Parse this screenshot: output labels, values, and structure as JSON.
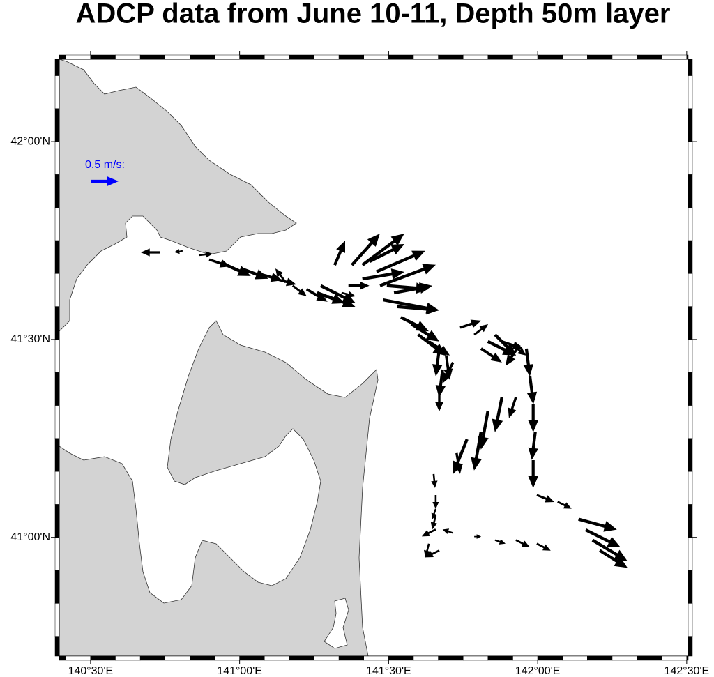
{
  "map": {
    "title": "ADCP data from June 10-11, Depth 50m layer",
    "xlim": [
      140.395,
      142.505
    ],
    "ylim": [
      40.7,
      42.208
    ],
    "xticks": [
      {
        "value": 140.5,
        "label": "140°30'E"
      },
      {
        "value": 141,
        "label": "141°00'E"
      },
      {
        "value": 141.5,
        "label": "141°30'E"
      },
      {
        "value": 142,
        "label": "142°00'E"
      },
      {
        "value": 142.5,
        "label": "142°30'E"
      }
    ],
    "yticks": [
      {
        "value": 41,
        "label": "41°00'N"
      },
      {
        "value": 41.5,
        "label": "41°30'N"
      },
      {
        "value": 42,
        "label": "42°00'N"
      }
    ],
    "land_color": "#d3d3d3",
    "vector_color": "#000000",
    "reference": {
      "value": 0.5,
      "label": "0.5 m/s:",
      "color": "#0000ff"
    },
    "vectors": {
      "lon": [
        140.734,
        140.809,
        140.863,
        140.898,
        140.944,
        141.003,
        141.061,
        141.12,
        141.155,
        141.178,
        141.225,
        141.26,
        141.295,
        141.272,
        141.342,
        141.365,
        141.319,
        141.377,
        141.412,
        141.436,
        141.459,
        141.412,
        141.471,
        141.494,
        141.482,
        141.529,
        141.518,
        141.541,
        141.576,
        141.599,
        141.635,
        141.67,
        141.693,
        141.716,
        141.681,
        141.67,
        141.74,
        141.787,
        141.81,
        141.833,
        141.857,
        141.88,
        141.915,
        141.939,
        141.962,
        141.974,
        141.985,
        141.992,
        141.985,
        141.88,
        141.833,
        141.81,
        141.763,
        141.728,
        141.927,
        141.997,
        142.067,
        142.137,
        142.161,
        142.184,
        142.208,
        141.997,
        141.927,
        141.857,
        141.787,
        141.716,
        141.658,
        141.635,
        141.67,
        141.658,
        141.658,
        141.651,
        141.658
      ],
      "lat": [
        41.72,
        41.724,
        41.713,
        41.702,
        41.692,
        41.68,
        41.667,
        41.653,
        41.644,
        41.636,
        41.627,
        41.618,
        41.609,
        41.636,
        41.618,
        41.636,
        41.688,
        41.688,
        41.688,
        41.697,
        41.671,
        41.653,
        41.636,
        41.636,
        41.6,
        41.583,
        41.618,
        41.556,
        41.539,
        41.512,
        41.495,
        41.477,
        41.46,
        41.442,
        41.424,
        41.371,
        41.53,
        41.512,
        41.477,
        41.495,
        41.512,
        41.495,
        41.486,
        41.486,
        41.477,
        41.407,
        41.336,
        41.266,
        41.195,
        41.354,
        41.319,
        41.266,
        41.248,
        41.213,
        41.354,
        41.107,
        41.09,
        41.046,
        41.019,
        40.993,
        40.967,
        40.984,
        40.993,
        40.993,
        41.002,
        41.011,
        41.02,
        40.984,
        40.967,
        41.055,
        41.107,
        41.16,
        41.072
      ],
      "u": [
        -0.35,
        -0.15,
        0.25,
        0.375,
        0.5,
        0.5,
        0.438,
        0.375,
        -0.188,
        0.25,
        0.375,
        0.5,
        0.5,
        0.625,
        0.25,
        0.375,
        0.188,
        0.5,
        0.75,
        0.625,
        0.875,
        0.75,
        1.0,
        0.75,
        1.0,
        0.75,
        0.688,
        0.5,
        0.5,
        0.5,
        0.375,
        -0.063,
        0.063,
        -0.188,
        -0.063,
        0.0,
        0.375,
        0.25,
        0.375,
        0.5,
        0.375,
        0.375,
        0.25,
        -0.25,
        0.063,
        0.063,
        0.0,
        -0.063,
        0.0,
        -0.125,
        -0.125,
        -0.125,
        -0.25,
        0.063,
        -0.125,
        0.313,
        0.25,
        0.688,
        0.625,
        0.625,
        0.5,
        0.25,
        0.25,
        0.188,
        0.125,
        -0.188,
        -0.25,
        -0.063,
        -0.25,
        -0.063,
        0.0,
        0.025,
        -0.063
      ],
      "v": [
        0.0,
        -0.025,
        0.025,
        -0.125,
        -0.225,
        -0.188,
        -0.125,
        -0.1,
        0.25,
        -0.188,
        -0.225,
        -0.188,
        -0.188,
        -0.313,
        -0.063,
        0.0,
        0.438,
        0.563,
        0.563,
        0.313,
        0.375,
        0.125,
        0.375,
        -0.063,
        -0.188,
        -0.063,
        0.125,
        -0.25,
        -0.313,
        -0.375,
        -0.25,
        -0.5,
        -0.438,
        -0.375,
        -0.5,
        -0.375,
        0.125,
        0.188,
        -0.25,
        -0.25,
        -0.375,
        -0.125,
        -0.188,
        -0.375,
        -0.5,
        -0.5,
        -0.5,
        -0.5,
        -0.5,
        -0.625,
        -0.688,
        -0.688,
        -0.625,
        -0.375,
        -0.375,
        -0.125,
        -0.125,
        -0.188,
        -0.313,
        -0.375,
        -0.313,
        -0.125,
        -0.125,
        -0.063,
        0.0,
        0.063,
        -0.125,
        -0.25,
        -0.125,
        -0.25,
        -0.25,
        -0.25,
        -0.188
      ]
    }
  }
}
